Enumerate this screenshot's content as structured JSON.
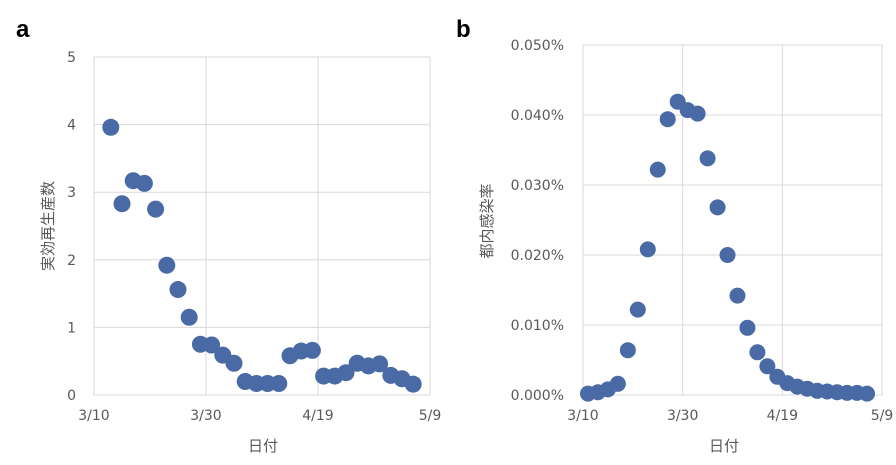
{
  "figure": {
    "panel_a_label": "a",
    "panel_b_label": "b",
    "marker_color": "#4a6aa5"
  },
  "chart_data": [
    {
      "type": "scatter",
      "panel": "a",
      "title": "",
      "xlabel": "日付",
      "ylabel": "実効再生産数",
      "x_tick_labels": [
        "3/10",
        "3/30",
        "4/19",
        "5/9"
      ],
      "y_tick_labels": [
        "0",
        "1",
        "2",
        "3",
        "4",
        "5"
      ],
      "xlim": [
        "3/10",
        "5/9"
      ],
      "ylim": [
        0,
        5
      ],
      "grid": true,
      "series": [
        {
          "points": [
            {
              "x": "3/13",
              "y": 3.96
            },
            {
              "x": "3/15",
              "y": 2.83
            },
            {
              "x": "3/17",
              "y": 3.17
            },
            {
              "x": "3/19",
              "y": 3.13
            },
            {
              "x": "3/21",
              "y": 2.75
            },
            {
              "x": "3/23",
              "y": 1.92
            },
            {
              "x": "3/25",
              "y": 1.56
            },
            {
              "x": "3/27",
              "y": 1.15
            },
            {
              "x": "3/29",
              "y": 0.75
            },
            {
              "x": "3/31",
              "y": 0.74
            },
            {
              "x": "4/2",
              "y": 0.59
            },
            {
              "x": "4/4",
              "y": 0.47
            },
            {
              "x": "4/6",
              "y": 0.2
            },
            {
              "x": "4/8",
              "y": 0.17
            },
            {
              "x": "4/10",
              "y": 0.17
            },
            {
              "x": "4/12",
              "y": 0.17
            },
            {
              "x": "4/14",
              "y": 0.58
            },
            {
              "x": "4/16",
              "y": 0.65
            },
            {
              "x": "4/18",
              "y": 0.66
            },
            {
              "x": "4/20",
              "y": 0.28
            },
            {
              "x": "4/22",
              "y": 0.28
            },
            {
              "x": "4/24",
              "y": 0.33
            },
            {
              "x": "4/26",
              "y": 0.47
            },
            {
              "x": "4/28",
              "y": 0.43
            },
            {
              "x": "4/30",
              "y": 0.46
            },
            {
              "x": "5/2",
              "y": 0.29
            },
            {
              "x": "5/4",
              "y": 0.24
            },
            {
              "x": "5/6",
              "y": 0.16
            }
          ]
        }
      ]
    },
    {
      "type": "scatter",
      "panel": "b",
      "title": "",
      "xlabel": "日付",
      "ylabel": "都内感染率",
      "x_tick_labels": [
        "3/10",
        "3/30",
        "4/19",
        "5/9"
      ],
      "y_tick_labels": [
        "0.000%",
        "0.010%",
        "0.020%",
        "0.030%",
        "0.040%",
        "0.050%"
      ],
      "xlim": [
        "3/10",
        "5/9"
      ],
      "ylim_percent": [
        0,
        0.05
      ],
      "grid": true,
      "series": [
        {
          "points": [
            {
              "x": "3/11",
              "y_percent": 0.0002
            },
            {
              "x": "3/13",
              "y_percent": 0.0004
            },
            {
              "x": "3/15",
              "y_percent": 0.0008
            },
            {
              "x": "3/17",
              "y_percent": 0.0016
            },
            {
              "x": "3/19",
              "y_percent": 0.0064
            },
            {
              "x": "3/21",
              "y_percent": 0.0122
            },
            {
              "x": "3/23",
              "y_percent": 0.0208
            },
            {
              "x": "3/25",
              "y_percent": 0.0322
            },
            {
              "x": "3/27",
              "y_percent": 0.0394
            },
            {
              "x": "3/29",
              "y_percent": 0.0419
            },
            {
              "x": "3/31",
              "y_percent": 0.0407
            },
            {
              "x": "4/2",
              "y_percent": 0.0402
            },
            {
              "x": "4/4",
              "y_percent": 0.0338
            },
            {
              "x": "4/6",
              "y_percent": 0.0268
            },
            {
              "x": "4/8",
              "y_percent": 0.02
            },
            {
              "x": "4/10",
              "y_percent": 0.0142
            },
            {
              "x": "4/12",
              "y_percent": 0.0096
            },
            {
              "x": "4/14",
              "y_percent": 0.0061
            },
            {
              "x": "4/16",
              "y_percent": 0.0041
            },
            {
              "x": "4/18",
              "y_percent": 0.0026
            },
            {
              "x": "4/20",
              "y_percent": 0.0017
            },
            {
              "x": "4/22",
              "y_percent": 0.0012
            },
            {
              "x": "4/24",
              "y_percent": 0.0009
            },
            {
              "x": "4/26",
              "y_percent": 0.0006
            },
            {
              "x": "4/28",
              "y_percent": 0.0005
            },
            {
              "x": "4/30",
              "y_percent": 0.0004
            },
            {
              "x": "5/2",
              "y_percent": 0.0003
            },
            {
              "x": "5/4",
              "y_percent": 0.0003
            },
            {
              "x": "5/6",
              "y_percent": 0.0002
            }
          ]
        }
      ]
    }
  ]
}
